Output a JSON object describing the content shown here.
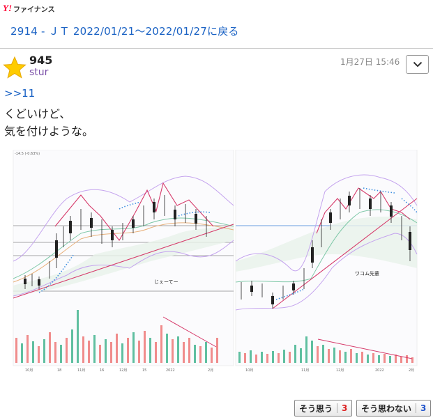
{
  "header": {
    "logo_mark": "Y!",
    "logo_text": "ファイナンス",
    "back_link": "2914 - ＪＴ 2022/01/21〜2022/01/27に戻る"
  },
  "post": {
    "number": "945",
    "username": "stur",
    "timestamp": "1月27日 15:46",
    "reply_ref": ">>11",
    "body_lines": [
      "くどいけど、",
      "気を付けような。"
    ],
    "star_color": "#ffcc00",
    "menu_icon": "chevron-down-icon"
  },
  "chart_image": {
    "left_panel": {
      "annotation": "じぇーてー",
      "top_readout": "-14.5 (-0.63%)",
      "x_ticks": [
        "10月",
        "18",
        "11月",
        "16",
        "12月",
        "15",
        "2022",
        "2月"
      ]
    },
    "right_panel": {
      "annotation": "ワコム先輩",
      "x_ticks": [
        "10月",
        "11月",
        "12月",
        "2022",
        "2月"
      ]
    },
    "colors": {
      "up_volume": "#5fbfa0",
      "down_volume": "#f08c8c",
      "trend_line": "#d63a6a",
      "band": "#b58ee0",
      "dotted": "#3f8fe0",
      "horizontal_blue": "#6a9de0"
    }
  },
  "votes": {
    "agree_label": "そう思う",
    "agree_count": "3",
    "disagree_label": "そう思わない",
    "disagree_count": "3",
    "agree_color": "#d22",
    "disagree_color": "#2255cc"
  }
}
